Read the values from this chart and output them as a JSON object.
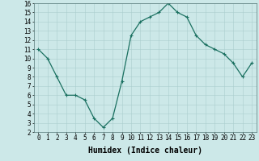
{
  "x": [
    0,
    1,
    2,
    3,
    4,
    5,
    6,
    7,
    8,
    9,
    10,
    11,
    12,
    13,
    14,
    15,
    16,
    17,
    18,
    19,
    20,
    21,
    22,
    23
  ],
  "y": [
    11,
    10,
    8,
    6,
    6,
    5.5,
    3.5,
    2.5,
    3.5,
    7.5,
    12.5,
    14,
    14.5,
    15,
    16,
    15,
    14.5,
    12.5,
    11.5,
    11,
    10.5,
    9.5,
    8,
    9.5
  ],
  "line_color": "#1a7060",
  "marker": "+",
  "markersize": 3,
  "linewidth": 0.9,
  "bg_color": "#cce8e8",
  "grid_color": "#aacece",
  "xlabel": "Humidex (Indice chaleur)",
  "xlabel_fontsize": 7,
  "tick_fontsize": 5.5,
  "xlim": [
    -0.5,
    23.5
  ],
  "ylim": [
    2,
    16
  ],
  "yticks": [
    2,
    3,
    4,
    5,
    6,
    7,
    8,
    9,
    10,
    11,
    12,
    13,
    14,
    15,
    16
  ],
  "xticks": [
    0,
    1,
    2,
    3,
    4,
    5,
    6,
    7,
    8,
    9,
    10,
    11,
    12,
    13,
    14,
    15,
    16,
    17,
    18,
    19,
    20,
    21,
    22,
    23
  ]
}
